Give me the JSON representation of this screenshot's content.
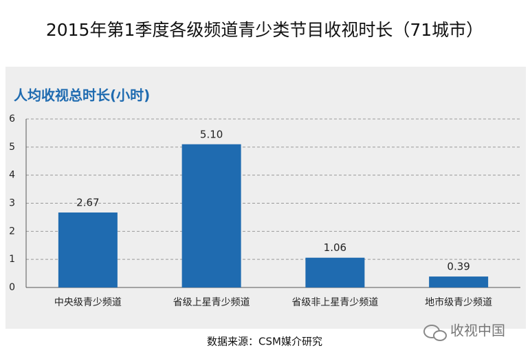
{
  "chart_data": {
    "type": "bar",
    "title": "2015年第1季度各级频道青少类节目收视时长（71城市）",
    "subtitle": "人均收视总时长(小时)",
    "categories": [
      "中央级青少频道",
      "省级上星青少频道",
      "省级非上星青少频道",
      "地市级青少频道"
    ],
    "values": [
      2.67,
      5.1,
      1.06,
      0.39
    ],
    "value_labels": [
      "2.67",
      "5.10",
      "1.06",
      "0.39"
    ],
    "color": "#1f6bb0",
    "ylim": [
      0,
      6
    ],
    "yticks": [
      0,
      1,
      2,
      3,
      4,
      5,
      6
    ],
    "grid": true,
    "source": "数据来源：CSM媒介研究",
    "watermark": "收视中国"
  }
}
